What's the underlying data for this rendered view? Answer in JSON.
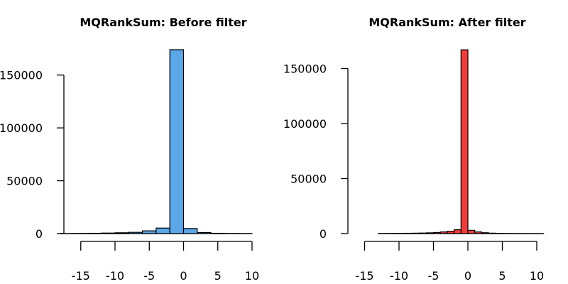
{
  "chart_data": [
    {
      "type": "bar",
      "title": "MQRankSum: Before filter",
      "xlabel": "",
      "ylabel": "",
      "bar_color": "#5AA8E8",
      "bin_width": 2,
      "bins_start": [
        -18,
        -16,
        -14,
        -12,
        -10,
        -8,
        -6,
        -4,
        -2,
        0,
        2,
        4,
        6,
        8
      ],
      "values": [
        100,
        200,
        300,
        500,
        800,
        1200,
        2600,
        5200,
        174000,
        4800,
        1000,
        300,
        150,
        80
      ],
      "xlim": [
        -18,
        10
      ],
      "ylim": [
        0,
        175000
      ],
      "x_ticks": [
        -15,
        -10,
        -5,
        0,
        5,
        10
      ],
      "x_tick_labels": [
        "-15",
        "-10",
        "-5",
        "0",
        "5",
        "10"
      ],
      "y_ticks": [
        0,
        50000,
        100000,
        150000
      ],
      "y_tick_labels": [
        "0",
        "50000",
        "100000",
        "150000"
      ],
      "grid": false
    },
    {
      "type": "bar",
      "title": "MQRankSum: After filter",
      "xlabel": "",
      "ylabel": "",
      "bar_color": "#F23C3C",
      "bin_width": 1,
      "bins_start": [
        -13,
        -12,
        -11,
        -10,
        -9,
        -8,
        -7,
        -6,
        -5,
        -4,
        -3,
        -2,
        -1,
        0,
        1,
        2,
        3,
        4,
        5,
        6,
        7,
        8,
        9,
        10
      ],
      "values": [
        100,
        150,
        200,
        250,
        300,
        400,
        500,
        700,
        1000,
        1500,
        2200,
        3500,
        167000,
        3000,
        1500,
        800,
        400,
        250,
        150,
        120,
        100,
        80,
        60,
        50
      ],
      "xlim": [
        -13,
        11
      ],
      "ylim": [
        0,
        150000
      ],
      "x_ticks": [
        -15,
        -10,
        -5,
        0,
        5,
        10
      ],
      "x_tick_labels": [
        "-15",
        "-10",
        "-5",
        "0",
        "5",
        "10"
      ],
      "y_ticks": [
        0,
        50000,
        100000,
        150000
      ],
      "y_tick_labels": [
        "0",
        "50000",
        "100000",
        "150000"
      ],
      "grid": false
    }
  ]
}
